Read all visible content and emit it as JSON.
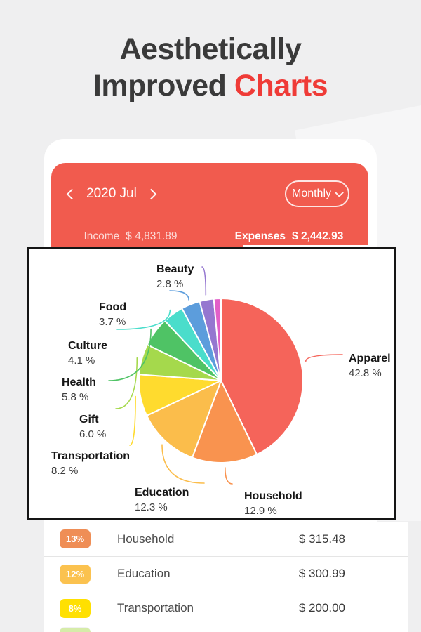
{
  "title": {
    "line1": "Aesthetically",
    "line2_dark": "Improved",
    "line2_accent": "Charts"
  },
  "colors": {
    "background": "#EFEFF0",
    "title_text": "#3A3A3A",
    "title_accent": "#EF3B37",
    "header_red": "#F15B4E",
    "card_border": "#151515"
  },
  "header": {
    "period": "2020 Jul",
    "range_selector": "Monthly",
    "tabs": [
      {
        "label": "Income",
        "amount": "$ 4,831.89",
        "active": false
      },
      {
        "label": "Expenses",
        "amount": "$ 2,442.93",
        "active": true
      }
    ]
  },
  "chart_data": {
    "type": "pie",
    "title": "Expenses by category",
    "unit": "%",
    "start_angle_deg": 0,
    "direction": "clockwise",
    "slices": [
      {
        "label": "Apparel",
        "value": 42.8,
        "color": "#F5645A"
      },
      {
        "label": "Household",
        "value": 12.9,
        "color": "#F9934F"
      },
      {
        "label": "Education",
        "value": 12.3,
        "color": "#FBBD4B"
      },
      {
        "label": "Transportation",
        "value": 8.2,
        "color": "#FFDB2E"
      },
      {
        "label": "Gift",
        "value": 6.0,
        "color": "#A5D94C"
      },
      {
        "label": "Health",
        "value": 5.8,
        "color": "#4FC365"
      },
      {
        "label": "Culture",
        "value": 4.1,
        "color": "#4ADDCB"
      },
      {
        "label": "Food",
        "value": 3.7,
        "color": "#5C9DDC"
      },
      {
        "label": "Beauty",
        "value": 2.8,
        "color": "#9577D0"
      },
      {
        "label": "",
        "value": 1.4,
        "color": "#E25FC8"
      }
    ]
  },
  "expense_list": {
    "rows": [
      {
        "percent": "13%",
        "category": "Household",
        "amount": "$ 315.48",
        "badge_color": "#EF8E56"
      },
      {
        "percent": "12%",
        "category": "Education",
        "amount": "$ 300.99",
        "badge_color": "#FBC24F"
      },
      {
        "percent": "8%",
        "category": "Transportation",
        "amount": "$ 200.00",
        "badge_color": "#FFE001"
      }
    ]
  }
}
